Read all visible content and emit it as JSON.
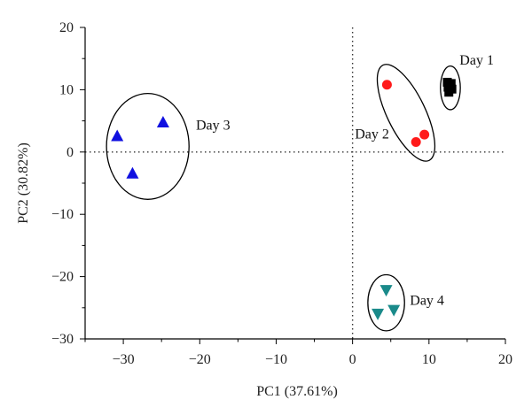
{
  "chart_data": {
    "type": "scatter",
    "xlabel": "PC1 (37.61%)",
    "ylabel": "PC2 (30.82%)",
    "xlim": [
      -35,
      20
    ],
    "ylim": [
      -30,
      20
    ],
    "xticks": [
      -30,
      -20,
      -10,
      0,
      10,
      20
    ],
    "yticks": [
      -30,
      -20,
      -10,
      0,
      10,
      20
    ],
    "xtick_labels": [
      "−30",
      "−20",
      "−10",
      "0",
      "10",
      "20"
    ],
    "ytick_labels": [
      "−30",
      "−20",
      "−10",
      "0",
      "10",
      "20"
    ],
    "grid": false,
    "reference_lines": [
      {
        "axis": "x",
        "value": 0,
        "style": "dotted"
      },
      {
        "axis": "y",
        "value": 0,
        "style": "dotted"
      }
    ],
    "series": [
      {
        "name": "Day 1",
        "marker": "square",
        "color": "#000000",
        "points": [
          [
            12.4,
            11.2
          ],
          [
            12.9,
            11.0
          ],
          [
            12.5,
            10.4
          ],
          [
            13.0,
            10.1
          ],
          [
            12.6,
            9.6
          ]
        ],
        "ellipse": {
          "cx": 12.8,
          "cy": 10.3,
          "rx": 1.3,
          "ry": 3.5,
          "angle": 0
        }
      },
      {
        "name": "Day 2",
        "marker": "circle",
        "color": "#ff1a1a",
        "points": [
          [
            4.5,
            10.8
          ],
          [
            8.3,
            1.6
          ],
          [
            9.4,
            2.8
          ]
        ],
        "ellipse": {
          "cx": 7.0,
          "cy": 6.3,
          "rx": 2.5,
          "ry": 8.5,
          "angle": 0.45
        }
      },
      {
        "name": "Day 3",
        "marker": "triangle-up",
        "color": "#1010e0",
        "points": [
          [
            -30.8,
            2.6
          ],
          [
            -24.8,
            4.8
          ],
          [
            -28.8,
            -3.4
          ]
        ],
        "ellipse": {
          "cx": -26.8,
          "cy": 0.9,
          "rx": 5.4,
          "ry": 8.5,
          "angle": 0
        }
      },
      {
        "name": "Day 4",
        "marker": "triangle-down",
        "color": "#1a8a8a",
        "points": [
          [
            4.4,
            -22.2
          ],
          [
            5.4,
            -25.4
          ],
          [
            3.3,
            -26.0
          ]
        ],
        "ellipse": {
          "cx": 4.4,
          "cy": -24.2,
          "rx": 2.4,
          "ry": 4.5,
          "angle": 0
        }
      }
    ],
    "annotations": [
      {
        "text": "Day 1",
        "x": 14.0,
        "y": 14.0
      },
      {
        "text": "Day 2",
        "x": 0.3,
        "y": 2.2
      },
      {
        "text": "Day 3",
        "x": -20.5,
        "y": 3.6
      },
      {
        "text": "Day 4",
        "x": 7.5,
        "y": -24.5
      }
    ]
  }
}
